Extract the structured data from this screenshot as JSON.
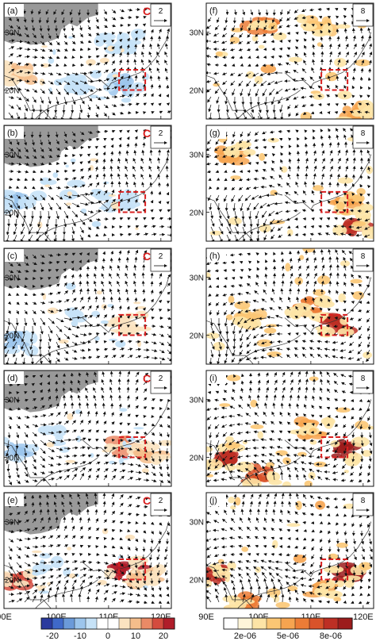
{
  "chart_data": {
    "type": "heatmap",
    "title": "",
    "x_tick_labels": [
      "90E",
      "100E",
      "110E",
      "120E"
    ],
    "y_tick_labels": [
      "20N",
      "30N"
    ],
    "lon_range": [
      90,
      122
    ],
    "lat_range": [
      15,
      35
    ],
    "box_region": {
      "lon": [
        112,
        117
      ],
      "lat": [
        20,
        23.5
      ]
    },
    "panels": [
      {
        "label": "(a)",
        "column": "left",
        "ref_vector": "2",
        "c_marker": "C",
        "anomalies": [
          {
            "lon": 113,
            "lat": 21,
            "value": -10
          },
          {
            "lon": 112,
            "lat": 28,
            "value": -5
          },
          {
            "lon": 93,
            "lat": 23,
            "value": 10
          },
          {
            "lon": 104,
            "lat": 21,
            "value": -5
          }
        ]
      },
      {
        "label": "(b)",
        "column": "left",
        "ref_vector": "2",
        "c_marker": "C",
        "anomalies": [
          {
            "lon": 92,
            "lat": 22,
            "value": -12
          },
          {
            "lon": 112,
            "lat": 22,
            "value": -5
          },
          {
            "lon": 100,
            "lat": 24,
            "value": -3
          }
        ]
      },
      {
        "label": "(c)",
        "column": "left",
        "ref_vector": "2",
        "c_marker": "C",
        "anomalies": [
          {
            "lon": 92,
            "lat": 19,
            "value": -12
          },
          {
            "lon": 113,
            "lat": 22,
            "value": 5
          },
          {
            "lon": 104,
            "lat": 24,
            "value": -3
          }
        ]
      },
      {
        "label": "(d)",
        "column": "left",
        "ref_vector": "2",
        "c_marker": "C",
        "anomalies": [
          {
            "lon": 92,
            "lat": 21,
            "value": -12
          },
          {
            "lon": 113,
            "lat": 22,
            "value": 12
          },
          {
            "lon": 118,
            "lat": 21,
            "value": 10
          },
          {
            "lon": 100,
            "lat": 23,
            "value": -3
          }
        ]
      },
      {
        "label": "(e)",
        "column": "left",
        "ref_vector": "2",
        "c_marker": "C",
        "anomalies": [
          {
            "lon": 92,
            "lat": 20,
            "value": 18
          },
          {
            "lon": 114,
            "lat": 21.5,
            "value": 20
          },
          {
            "lon": 117,
            "lat": 20.5,
            "value": 10
          },
          {
            "lon": 100,
            "lat": 23,
            "value": -3
          }
        ]
      },
      {
        "label": "(f)",
        "column": "right",
        "ref_vector": "8",
        "hotspots": [
          {
            "lon": 100,
            "lat": 31,
            "value": 6e-06
          },
          {
            "lon": 112,
            "lat": 31,
            "value": 4e-06
          },
          {
            "lon": 118,
            "lat": 16,
            "value": 5e-06
          }
        ]
      },
      {
        "label": "(g)",
        "column": "right",
        "ref_vector": "8",
        "hotspots": [
          {
            "lon": 95,
            "lat": 30,
            "value": 5e-06
          },
          {
            "lon": 119,
            "lat": 17,
            "value": 8e-06
          },
          {
            "lon": 117,
            "lat": 21,
            "value": 5e-06
          }
        ]
      },
      {
        "label": "(h)",
        "column": "right",
        "ref_vector": "8",
        "hotspots": [
          {
            "lon": 115,
            "lat": 22,
            "value": 8e-06
          },
          {
            "lon": 110,
            "lat": 25,
            "value": 6e-06
          },
          {
            "lon": 98,
            "lat": 23,
            "value": 4e-06
          }
        ]
      },
      {
        "label": "(i)",
        "column": "right",
        "ref_vector": "8",
        "hotspots": [
          {
            "lon": 117,
            "lat": 21,
            "value": 9e-06
          },
          {
            "lon": 93,
            "lat": 20,
            "value": 8e-06
          },
          {
            "lon": 100,
            "lat": 17,
            "value": 7e-06
          },
          {
            "lon": 110,
            "lat": 25,
            "value": 5e-06
          }
        ]
      },
      {
        "label": "(j)",
        "column": "right",
        "ref_vector": "8",
        "hotspots": [
          {
            "lon": 117,
            "lat": 21,
            "value": 9e-06
          },
          {
            "lon": 91,
            "lat": 21,
            "value": 8e-06
          },
          {
            "lon": 97,
            "lat": 16,
            "value": 6e-06
          },
          {
            "lon": 112,
            "lat": 18,
            "value": 5e-06
          }
        ]
      }
    ],
    "left_colorbar": {
      "tick_labels": [
        "-20",
        "-10",
        "0",
        "10",
        "20"
      ],
      "colors": [
        "#2b3a9e",
        "#3f69c9",
        "#6b9ad9",
        "#9cc5ec",
        "#c6e2f7",
        "#ffffff",
        "#ffffff",
        "#fbe3c0",
        "#f4bd8b",
        "#ea8a66",
        "#d44b3e",
        "#b01d2a"
      ]
    },
    "right_colorbar": {
      "tick_labels": [
        "2e-06",
        "5e-06",
        "8e-06"
      ],
      "colors": [
        "#ffffff",
        "#fff5d9",
        "#fde4a6",
        "#fbc674",
        "#f6a450",
        "#ec7c36",
        "#d9532a",
        "#bd2f24",
        "#9c1c1c"
      ]
    },
    "colors": {
      "land_mask": "#999999",
      "box": "#d92020",
      "vector": "#111111",
      "contour": "#333333"
    }
  }
}
